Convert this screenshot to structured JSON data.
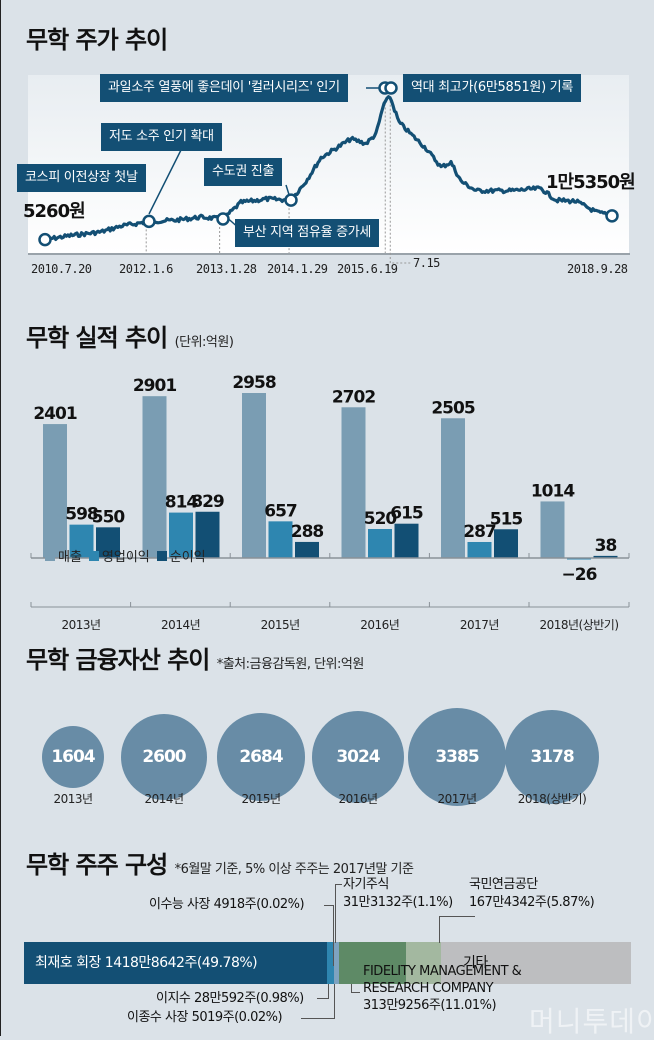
{
  "colors": {
    "background": "#dbe2e8",
    "callout": "#134f74",
    "line": "#134f74",
    "sales": "#7a9db3",
    "operating_profit": "#2e86b0",
    "net_profit": "#124f74",
    "bubble": "#688ca6",
    "owner": "#134f74",
    "fidelity": "#5e8a66",
    "nps": "#a3b8a0",
    "others": "#bdbec0"
  },
  "stock": {
    "title": "무학 주가 추이",
    "start_value_label": "5260원",
    "end_value_label": "1만5350원",
    "callouts": [
      {
        "text": "코스피 이전상장 첫날"
      },
      {
        "text": "저도 소주 인기 확대"
      },
      {
        "text": "수도권 진출"
      },
      {
        "text": "부산 지역 점유율 증가세"
      },
      {
        "text": "과일소주 열풍에 좋은데이 '컬러시리즈' 인기"
      },
      {
        "text": "역대 최고가(6만5851원) 기록"
      }
    ],
    "x_labels": [
      "2010.7.20",
      "2012.1.6",
      "2013.1.28",
      "2014.1.29",
      "2015.6.19",
      "7.15",
      "2018.9.28"
    ]
  },
  "chart_data": [
    {
      "type": "line",
      "title": "무학 주가 추이",
      "xlabel": "",
      "ylabel": "",
      "x": [
        "2010.7.20",
        "2012.1.6",
        "2013.1.28",
        "2014.1.29",
        "2015.6.19",
        "2015.7.15",
        "2018.9.28"
      ],
      "y": [
        5260,
        13000,
        14000,
        22000,
        63000,
        65851,
        15350
      ],
      "annotations": [
        "5260원",
        "1만5350원",
        "역대 최고가(6만5851원) 기록"
      ]
    },
    {
      "type": "bar",
      "title": "무학 실적 추이",
      "unit": "(단위:억원)",
      "categories": [
        "2013년",
        "2014년",
        "2015년",
        "2016년",
        "2017년",
        "2018년(상반기)"
      ],
      "series": [
        {
          "name": "매출",
          "values": [
            2401,
            2901,
            2958,
            2702,
            2505,
            1014
          ]
        },
        {
          "name": "영업이익",
          "values": [
            598,
            814,
            657,
            520,
            287,
            -26
          ]
        },
        {
          "name": "순이익",
          "values": [
            550,
            829,
            288,
            615,
            515,
            38
          ]
        }
      ],
      "legend": "bottom-left",
      "ylim": [
        -100,
        3000
      ]
    },
    {
      "type": "bubble",
      "title": "무학 금융자산 추이",
      "note": "*출처:금융감독원, 단위:억원",
      "categories": [
        "2013년",
        "2014년",
        "2015년",
        "2016년",
        "2017년",
        "2018(상반기)"
      ],
      "values": [
        1604,
        2600,
        2684,
        3024,
        3385,
        3178
      ]
    },
    {
      "type": "stacked-bar",
      "title": "무학 주주 구성",
      "note": "*6월말 기준, 5% 이상 주주는 2017년말 기준",
      "segments": [
        {
          "name": "최재호 회장",
          "shares": "1418만8642주",
          "pct": 49.78
        },
        {
          "name": "이지수",
          "shares": "28만592주",
          "pct": 0.98
        },
        {
          "name": "이수능 사장",
          "shares": "4918주",
          "pct": 0.02
        },
        {
          "name": "이종수 사장",
          "shares": "5019주",
          "pct": 0.02
        },
        {
          "name": "자기주식",
          "shares": "31만3132주",
          "pct": 1.1
        },
        {
          "name": "FIDELITY MANAGEMENT & RESEARCH COMPANY",
          "shares": "313만9256주",
          "pct": 11.01
        },
        {
          "name": "국민연금공단",
          "shares": "167만4342주",
          "pct": 5.87
        },
        {
          "name": "기타",
          "shares": "",
          "pct": 31.22
        }
      ]
    }
  ],
  "perf": {
    "title": "무학 실적 추이",
    "unit": "(단위:억원)",
    "legend": [
      "매출",
      "영업이익",
      "순이익"
    ]
  },
  "assets": {
    "title": "무학 금융자산 추이",
    "note": "*출처:금융감독원, 단위:억원"
  },
  "holders": {
    "title": "무학 주주 구성",
    "note": "*6월말 기준, 5% 이상 주주는 2017년말 기준",
    "owner_label": "최재호 회장  1418만8642주(49.78%)",
    "isuneung": "이수능 사장  4918주(0.02%)",
    "ijisu": "이지수  28만592주(0.98%)",
    "ijongsu": "이종수 사장  5019주(0.02%)",
    "treasury_name": "자기주식",
    "treasury_val": "31만3132주(1.1%)",
    "nps_name": "국민연금공단",
    "nps_val": "167만4342주(5.87%)",
    "fidelity_1": "FIDELITY MANAGEMENT &",
    "fidelity_2": "RESEARCH COMPANY",
    "fidelity_3": "313만9256주(11.01%)",
    "others": "기타"
  },
  "watermark": "머니투데이"
}
